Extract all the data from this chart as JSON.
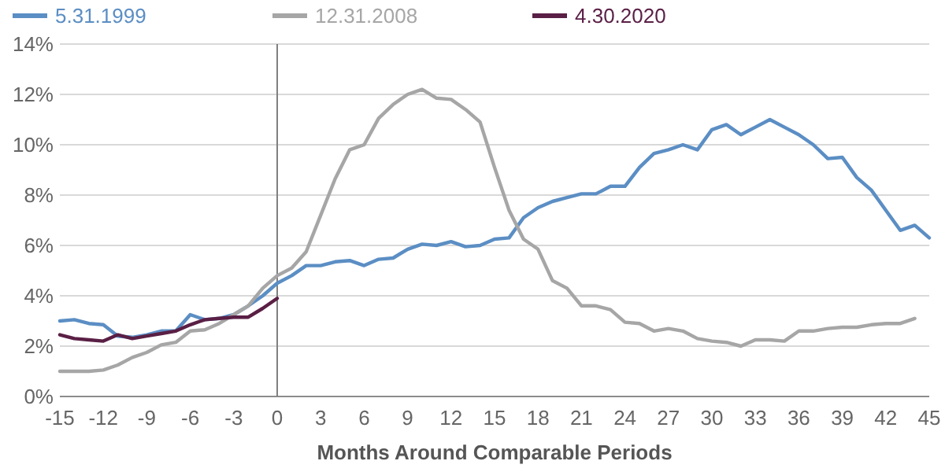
{
  "chart_data": {
    "type": "line",
    "xlabel": "Months Around Comparable Periods",
    "x": [
      -15,
      -14,
      -13,
      -12,
      -11,
      -10,
      -9,
      -8,
      -7,
      -6,
      -5,
      -4,
      -3,
      -2,
      -1,
      0,
      1,
      2,
      3,
      4,
      5,
      6,
      7,
      8,
      9,
      10,
      11,
      12,
      13,
      14,
      15,
      16,
      17,
      18,
      19,
      20,
      21,
      22,
      23,
      24,
      25,
      26,
      27,
      28,
      29,
      30,
      31,
      32,
      33,
      34,
      35,
      36,
      37,
      38,
      39,
      40,
      41,
      42,
      43,
      44,
      45
    ],
    "series": [
      {
        "name": "5.31.1999",
        "color": "#5b8ec4",
        "values": [
          3.0,
          3.05,
          2.9,
          2.85,
          2.4,
          2.35,
          2.45,
          2.6,
          2.6,
          3.25,
          3.05,
          3.1,
          3.25,
          3.6,
          4.0,
          4.5,
          4.8,
          5.2,
          5.2,
          5.35,
          5.4,
          5.2,
          5.45,
          5.5,
          5.85,
          6.05,
          6.0,
          6.15,
          5.95,
          6.0,
          6.25,
          6.3,
          7.1,
          7.5,
          7.75,
          7.9,
          8.05,
          8.05,
          8.35,
          8.35,
          9.1,
          9.65,
          9.8,
          10.0,
          9.8,
          10.6,
          10.8,
          10.4,
          10.7,
          11.0,
          10.7,
          10.4,
          10.0,
          9.45,
          9.5,
          8.7,
          8.2,
          7.4,
          6.6,
          6.8,
          6.3
        ]
      },
      {
        "name": "12.31.2008",
        "color": "#a6a6a6",
        "values": [
          1.0,
          1.0,
          1.0,
          1.05,
          1.25,
          1.55,
          1.75,
          2.05,
          2.15,
          2.6,
          2.65,
          2.9,
          3.25,
          3.6,
          4.3,
          4.8,
          5.1,
          5.75,
          7.2,
          8.65,
          9.8,
          10.0,
          11.05,
          11.6,
          12.0,
          12.2,
          11.85,
          11.8,
          11.4,
          10.9,
          9.1,
          7.4,
          6.25,
          5.85,
          4.6,
          4.3,
          3.6,
          3.6,
          3.45,
          2.95,
          2.9,
          2.6,
          2.7,
          2.6,
          2.3,
          2.2,
          2.15,
          2.0,
          2.25,
          2.25,
          2.2,
          2.6,
          2.6,
          2.7,
          2.75,
          2.75,
          2.85,
          2.9,
          2.9,
          3.1,
          null
        ]
      },
      {
        "name": "4.30.2020",
        "color": "#5a1f45",
        "values": [
          2.45,
          2.3,
          2.25,
          2.2,
          2.45,
          2.3,
          2.4,
          2.5,
          2.6,
          2.85,
          3.05,
          3.1,
          3.15,
          3.15,
          3.5,
          3.9,
          null,
          null,
          null,
          null,
          null,
          null,
          null,
          null,
          null,
          null,
          null,
          null,
          null,
          null,
          null,
          null,
          null,
          null,
          null,
          null,
          null,
          null,
          null,
          null,
          null,
          null,
          null,
          null,
          null,
          null,
          null,
          null,
          null,
          null,
          null,
          null,
          null,
          null,
          null,
          null,
          null,
          null,
          null,
          null,
          null
        ]
      }
    ],
    "xlim": [
      -15,
      45
    ],
    "xticks": [
      -15,
      -12,
      -9,
      -6,
      -3,
      0,
      3,
      6,
      9,
      12,
      15,
      18,
      21,
      24,
      27,
      30,
      33,
      36,
      39,
      42,
      45
    ],
    "ylim": [
      0,
      14
    ],
    "yticks": [
      {
        "value": 0,
        "label": "0%"
      },
      {
        "value": 2,
        "label": "2%"
      },
      {
        "value": 4,
        "label": "4%"
      },
      {
        "value": 6,
        "label": "6%"
      },
      {
        "value": 8,
        "label": "8%"
      },
      {
        "value": 10,
        "label": "10%"
      },
      {
        "value": 12,
        "label": "12%"
      },
      {
        "value": 14,
        "label": "14%"
      }
    ],
    "grid": "y",
    "legend": "top left",
    "ref_lines": [
      {
        "axis": "x",
        "value": 0,
        "color": "#808080"
      }
    ],
    "line_style": "solid",
    "marker": "none"
  }
}
